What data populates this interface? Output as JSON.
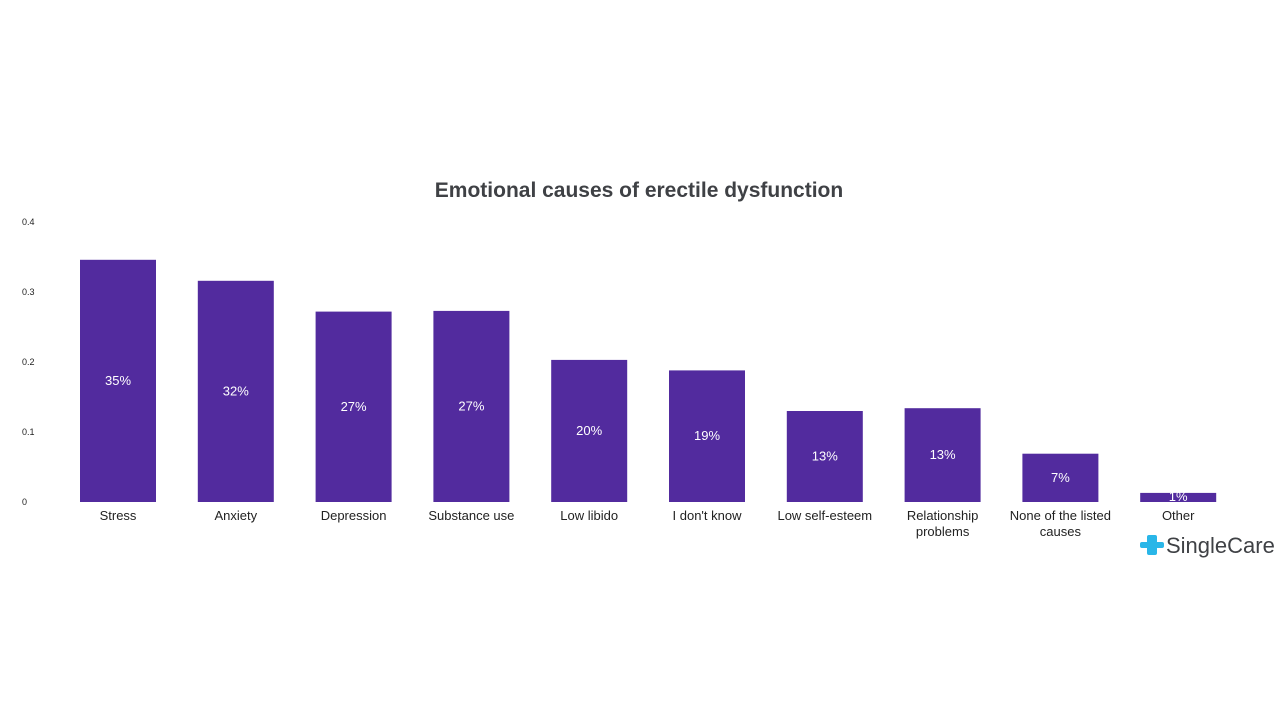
{
  "chart_data": {
    "type": "bar",
    "title": "Emotional causes of erectile dysfunction",
    "xlabel": "",
    "ylabel": "",
    "ylim": [
      0,
      0.4
    ],
    "yticks": [
      "0",
      "0.1",
      "0.2",
      "0.3",
      "0.4"
    ],
    "categories": [
      [
        "Stress"
      ],
      [
        "Anxiety"
      ],
      [
        "Depression"
      ],
      [
        "Substance use"
      ],
      [
        "Low libido"
      ],
      [
        "I don't know"
      ],
      [
        "Low self-esteem"
      ],
      [
        "Relationship",
        "problems"
      ],
      [
        "None of the listed",
        "causes"
      ],
      [
        "Other"
      ]
    ],
    "values": [
      0.346,
      0.316,
      0.272,
      0.273,
      0.203,
      0.188,
      0.13,
      0.134,
      0.069,
      0.013
    ],
    "data_labels": [
      "35%",
      "32%",
      "27%",
      "27%",
      "20%",
      "19%",
      "13%",
      "13%",
      "7%",
      "1%"
    ],
    "bar_color": "#522b9e",
    "grid": false,
    "legend": "none"
  },
  "brand": {
    "logo_text": "SingleCare",
    "logo_icon": "medical-cross-icon",
    "icon_color": "#29b6e8"
  }
}
